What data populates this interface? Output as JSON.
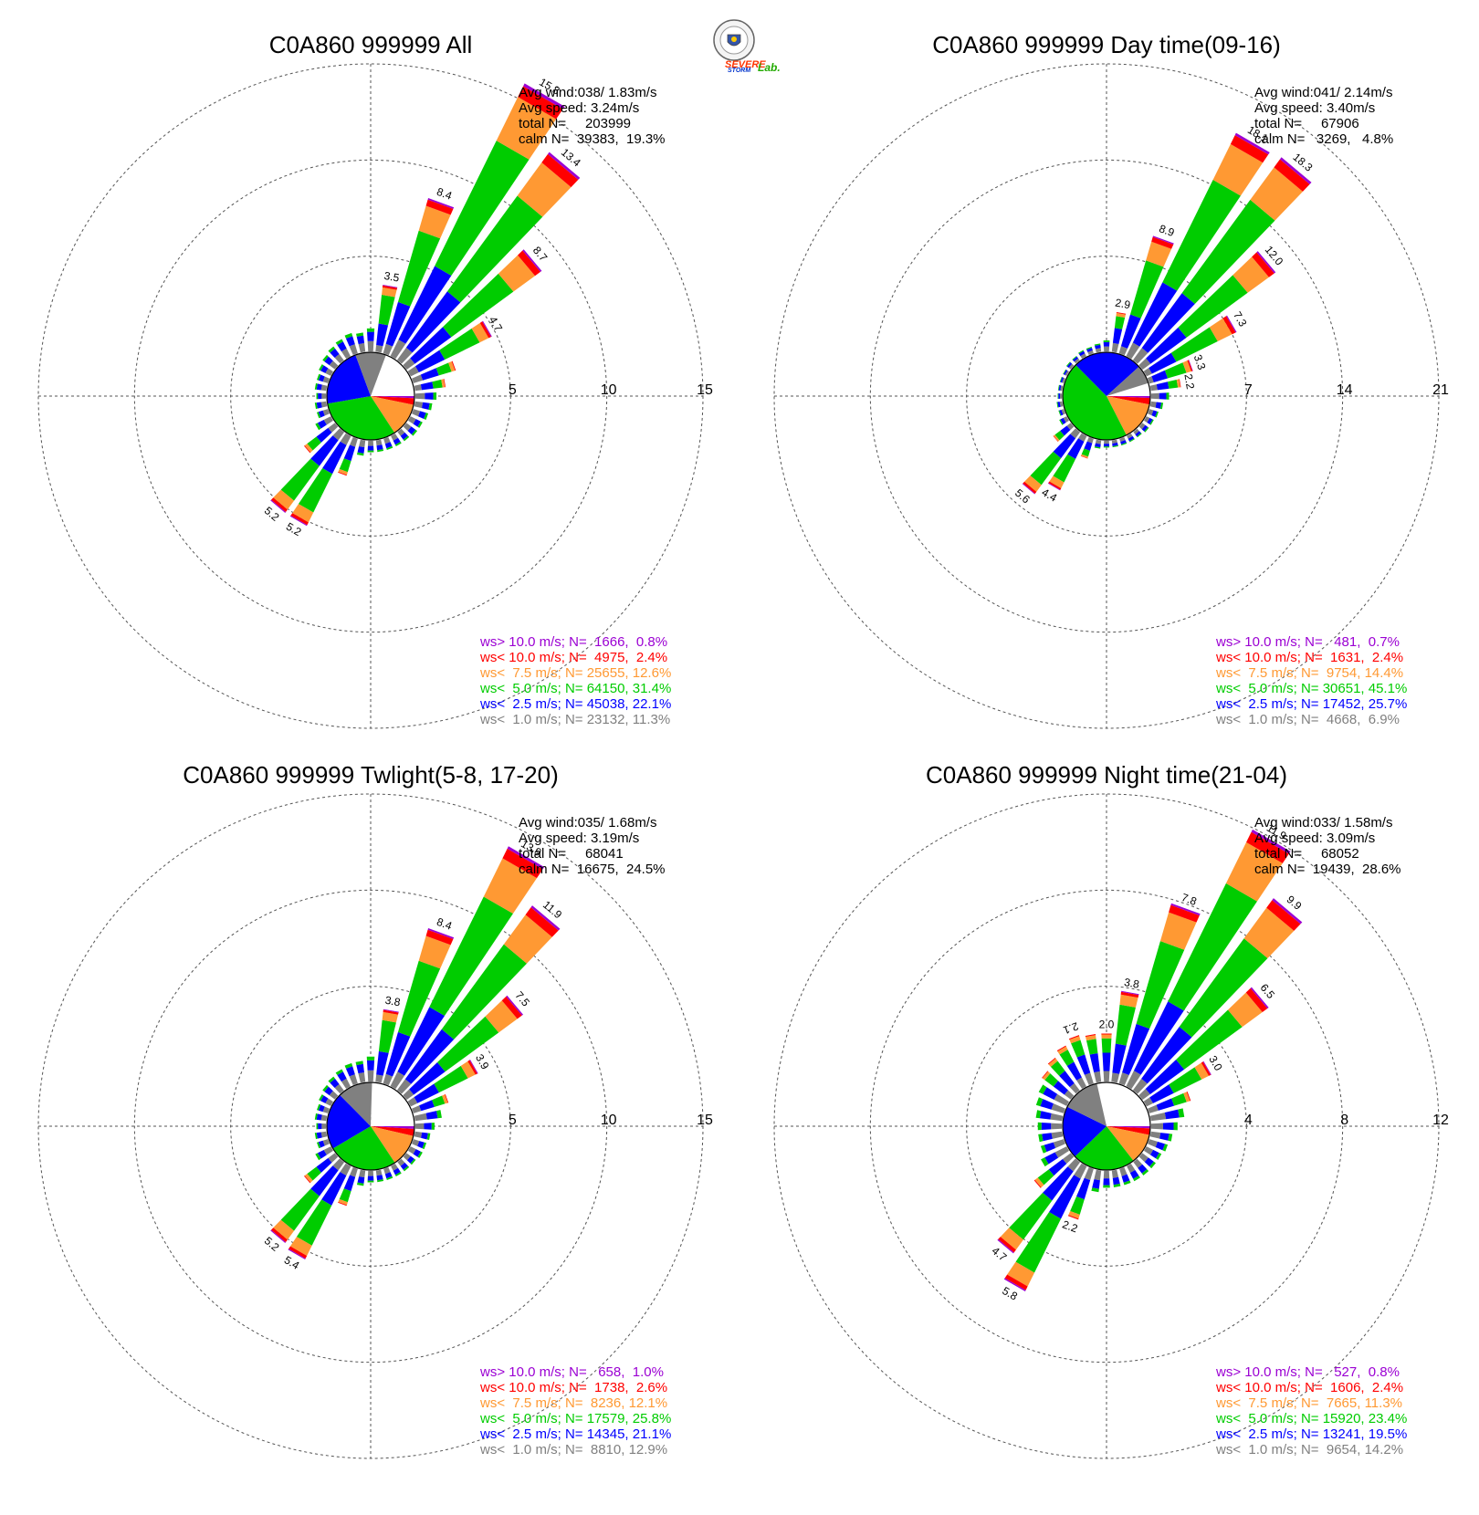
{
  "logo": {
    "text_severe": "SEVERE",
    "text_storm": "STORM",
    "text_lab": "Lab."
  },
  "colors": {
    "bin_gt10": "#9b00d3",
    "bin_lt10": "#ff0000",
    "bin_lt75": "#ff9933",
    "bin_lt5": "#00cc00",
    "bin_lt25": "#0000ff",
    "bin_lt1": "#808080",
    "grid": "#555555"
  },
  "chart_data": [
    {
      "type": "windrose",
      "title": "C0A860 999999 All",
      "rmax": 15,
      "rings": [
        5,
        10,
        15
      ],
      "ring_labels": [
        "5",
        "10",
        "15"
      ],
      "stats": [
        "Avg wind:038/ 1.83m/s",
        "Avg speed: 3.24m/s",
        "total N=     203999",
        "calm N=  39383,  19.3%"
      ],
      "legend": [
        "ws> 10.0 m/s; N=  1666,  0.8%",
        "ws< 10.0 m/s; N=  4975,  2.4%",
        "ws<  7.5 m/s; N= 25655, 12.6%",
        "ws<  5.0 m/s; N= 64150, 31.4%",
        "ws<  2.5 m/s; N= 45038, 22.1%",
        "ws<  1.0 m/s; N= 23132, 11.3%"
      ],
      "pie": [
        19.3,
        0.8,
        2.4,
        12.6,
        31.4,
        22.1,
        11.3
      ],
      "bars": [
        {
          "dir": 0,
          "total": 1.2,
          "label": ""
        },
        {
          "dir": 10,
          "total": 3.5,
          "label": "3.5"
        },
        {
          "dir": 20,
          "total": 8.4,
          "label": "8.4"
        },
        {
          "dir": 30,
          "total": 15.8,
          "label": "15.8"
        },
        {
          "dir": 40,
          "total": 13.4,
          "label": "13.4"
        },
        {
          "dir": 50,
          "total": 8.7,
          "label": "8.7"
        },
        {
          "dir": 60,
          "total": 4.7,
          "label": "4.7"
        },
        {
          "dir": 70,
          "total": 2.3,
          "label": ""
        },
        {
          "dir": 80,
          "total": 1.6,
          "label": ""
        },
        {
          "dir": 90,
          "total": 1.1,
          "label": ""
        },
        {
          "dir": 100,
          "total": 0.9,
          "label": ""
        },
        {
          "dir": 110,
          "total": 0.8,
          "label": ""
        },
        {
          "dir": 120,
          "total": 0.7,
          "label": ""
        },
        {
          "dir": 130,
          "total": 0.7,
          "label": ""
        },
        {
          "dir": 140,
          "total": 0.6,
          "label": ""
        },
        {
          "dir": 150,
          "total": 0.6,
          "label": ""
        },
        {
          "dir": 160,
          "total": 0.6,
          "label": ""
        },
        {
          "dir": 170,
          "total": 0.6,
          "label": ""
        },
        {
          "dir": 180,
          "total": 0.6,
          "label": ""
        },
        {
          "dir": 190,
          "total": 0.8,
          "label": ""
        },
        {
          "dir": 200,
          "total": 2.0,
          "label": ""
        },
        {
          "dir": 210,
          "total": 5.2,
          "label": "5.2"
        },
        {
          "dir": 220,
          "total": 5.2,
          "label": "5.2"
        },
        {
          "dir": 230,
          "total": 2.0,
          "label": ""
        },
        {
          "dir": 240,
          "total": 0.9,
          "label": ""
        },
        {
          "dir": 250,
          "total": 0.6,
          "label": ""
        },
        {
          "dir": 260,
          "total": 0.6,
          "label": ""
        },
        {
          "dir": 270,
          "total": 0.5,
          "label": ""
        },
        {
          "dir": 280,
          "total": 0.6,
          "label": ""
        },
        {
          "dir": 290,
          "total": 0.6,
          "label": ""
        },
        {
          "dir": 300,
          "total": 0.7,
          "label": ""
        },
        {
          "dir": 310,
          "total": 0.8,
          "label": ""
        },
        {
          "dir": 320,
          "total": 0.9,
          "label": ""
        },
        {
          "dir": 330,
          "total": 1.0,
          "label": ""
        },
        {
          "dir": 340,
          "total": 1.1,
          "label": ""
        },
        {
          "dir": 350,
          "total": 1.0,
          "label": ""
        }
      ]
    },
    {
      "type": "windrose",
      "title": "C0A860 999999 Day time(09-16)",
      "rmax": 21,
      "rings": [
        7,
        14,
        21
      ],
      "ring_labels": [
        "7",
        "14",
        "21"
      ],
      "stats": [
        "Avg wind:041/ 2.14m/s",
        "Avg speed: 3.40m/s",
        "total N=     67906",
        "calm N=   3269,   4.8%"
      ],
      "legend": [
        "ws> 10.0 m/s; N=   481,  0.7%",
        "ws< 10.0 m/s; N=  1631,  2.4%",
        "ws<  7.5 m/s; N=  9754, 14.4%",
        "ws<  5.0 m/s; N= 30651, 45.1%",
        "ws<  2.5 m/s; N= 17452, 25.7%",
        "ws<  1.0 m/s; N=  4668,  6.9%"
      ],
      "pie": [
        4.8,
        0.7,
        2.4,
        14.4,
        45.1,
        25.7,
        6.9
      ],
      "bars": [
        {
          "dir": 0,
          "total": 0.8,
          "label": ""
        },
        {
          "dir": 10,
          "total": 2.9,
          "label": "2.9"
        },
        {
          "dir": 20,
          "total": 8.9,
          "label": "8.9"
        },
        {
          "dir": 30,
          "total": 18.1,
          "label": "18.1"
        },
        {
          "dir": 40,
          "total": 18.3,
          "label": "18.3"
        },
        {
          "dir": 50,
          "total": 12.0,
          "label": "12.0"
        },
        {
          "dir": 60,
          "total": 7.3,
          "label": "7.3"
        },
        {
          "dir": 70,
          "total": 3.3,
          "label": "3.3"
        },
        {
          "dir": 80,
          "total": 2.2,
          "label": "2.2"
        },
        {
          "dir": 90,
          "total": 1.3,
          "label": ""
        },
        {
          "dir": 100,
          "total": 0.9,
          "label": ""
        },
        {
          "dir": 110,
          "total": 0.7,
          "label": ""
        },
        {
          "dir": 120,
          "total": 0.6,
          "label": ""
        },
        {
          "dir": 130,
          "total": 0.6,
          "label": ""
        },
        {
          "dir": 140,
          "total": 0.5,
          "label": ""
        },
        {
          "dir": 150,
          "total": 0.5,
          "label": ""
        },
        {
          "dir": 160,
          "total": 0.5,
          "label": ""
        },
        {
          "dir": 170,
          "total": 0.5,
          "label": ""
        },
        {
          "dir": 180,
          "total": 0.5,
          "label": ""
        },
        {
          "dir": 190,
          "total": 0.6,
          "label": ""
        },
        {
          "dir": 200,
          "total": 1.5,
          "label": ""
        },
        {
          "dir": 210,
          "total": 4.4,
          "label": "4.4"
        },
        {
          "dir": 220,
          "total": 5.6,
          "label": "5.6"
        },
        {
          "dir": 230,
          "total": 1.6,
          "label": ""
        },
        {
          "dir": 240,
          "total": 0.6,
          "label": ""
        },
        {
          "dir": 250,
          "total": 0.4,
          "label": ""
        },
        {
          "dir": 260,
          "total": 0.4,
          "label": ""
        },
        {
          "dir": 270,
          "total": 0.3,
          "label": ""
        },
        {
          "dir": 280,
          "total": 0.3,
          "label": ""
        },
        {
          "dir": 290,
          "total": 0.3,
          "label": ""
        },
        {
          "dir": 300,
          "total": 0.3,
          "label": ""
        },
        {
          "dir": 310,
          "total": 0.4,
          "label": ""
        },
        {
          "dir": 320,
          "total": 0.4,
          "label": ""
        },
        {
          "dir": 330,
          "total": 0.5,
          "label": ""
        },
        {
          "dir": 340,
          "total": 0.5,
          "label": ""
        },
        {
          "dir": 350,
          "total": 0.6,
          "label": ""
        }
      ]
    },
    {
      "type": "windrose",
      "title": "C0A860 999999 Twlight(5-8, 17-20)",
      "rmax": 15,
      "rings": [
        5,
        10,
        15
      ],
      "ring_labels": [
        "5",
        "10",
        "15"
      ],
      "stats": [
        "Avg wind:035/ 1.68m/s",
        "Avg speed: 3.19m/s",
        "total N=     68041",
        "calm N=  16675,  24.5%"
      ],
      "legend": [
        "ws> 10.0 m/s; N=   658,  1.0%",
        "ws< 10.0 m/s; N=  1738,  2.6%",
        "ws<  7.5 m/s; N=  8236, 12.1%",
        "ws<  5.0 m/s; N= 17579, 25.8%",
        "ws<  2.5 m/s; N= 14345, 21.1%",
        "ws<  1.0 m/s; N=  8810, 12.9%"
      ],
      "pie": [
        24.5,
        1.0,
        2.6,
        12.1,
        25.8,
        21.1,
        12.9
      ],
      "bars": [
        {
          "dir": 0,
          "total": 1.3,
          "label": ""
        },
        {
          "dir": 10,
          "total": 3.8,
          "label": "3.8"
        },
        {
          "dir": 20,
          "total": 8.4,
          "label": "8.4"
        },
        {
          "dir": 30,
          "total": 13.9,
          "label": "13.9"
        },
        {
          "dir": 40,
          "total": 11.9,
          "label": "11.9"
        },
        {
          "dir": 50,
          "total": 7.5,
          "label": "7.5"
        },
        {
          "dir": 60,
          "total": 3.9,
          "label": "3.9"
        },
        {
          "dir": 70,
          "total": 1.9,
          "label": ""
        },
        {
          "dir": 80,
          "total": 1.4,
          "label": ""
        },
        {
          "dir": 90,
          "total": 1.0,
          "label": ""
        },
        {
          "dir": 100,
          "total": 0.8,
          "label": ""
        },
        {
          "dir": 110,
          "total": 0.7,
          "label": ""
        },
        {
          "dir": 120,
          "total": 0.7,
          "label": ""
        },
        {
          "dir": 130,
          "total": 0.6,
          "label": ""
        },
        {
          "dir": 140,
          "total": 0.6,
          "label": ""
        },
        {
          "dir": 150,
          "total": 0.6,
          "label": ""
        },
        {
          "dir": 160,
          "total": 0.6,
          "label": ""
        },
        {
          "dir": 170,
          "total": 0.6,
          "label": ""
        },
        {
          "dir": 180,
          "total": 0.6,
          "label": ""
        },
        {
          "dir": 190,
          "total": 0.8,
          "label": ""
        },
        {
          "dir": 200,
          "total": 2.0,
          "label": ""
        },
        {
          "dir": 210,
          "total": 5.4,
          "label": "5.4"
        },
        {
          "dir": 220,
          "total": 5.2,
          "label": "5.2"
        },
        {
          "dir": 230,
          "total": 2.0,
          "label": ""
        },
        {
          "dir": 240,
          "total": 0.9,
          "label": ""
        },
        {
          "dir": 250,
          "total": 0.6,
          "label": ""
        },
        {
          "dir": 260,
          "total": 0.6,
          "label": ""
        },
        {
          "dir": 270,
          "total": 0.5,
          "label": ""
        },
        {
          "dir": 280,
          "total": 0.6,
          "label": ""
        },
        {
          "dir": 290,
          "total": 0.6,
          "label": ""
        },
        {
          "dir": 300,
          "total": 0.7,
          "label": ""
        },
        {
          "dir": 310,
          "total": 0.8,
          "label": ""
        },
        {
          "dir": 320,
          "total": 0.9,
          "label": ""
        },
        {
          "dir": 330,
          "total": 1.0,
          "label": ""
        },
        {
          "dir": 340,
          "total": 1.1,
          "label": ""
        },
        {
          "dir": 350,
          "total": 1.1,
          "label": ""
        }
      ]
    },
    {
      "type": "windrose",
      "title": "C0A860 999999 Night time(21-04)",
      "rmax": 12,
      "rings": [
        4,
        8,
        12
      ],
      "ring_labels": [
        "4",
        "8",
        "12"
      ],
      "stats": [
        "Avg wind:033/ 1.58m/s",
        "Avg speed: 3.09m/s",
        "total N=     68052",
        "calm N=  19439,  28.6%"
      ],
      "legend": [
        "ws> 10.0 m/s; N=   527,  0.8%",
        "ws< 10.0 m/s; N=  1606,  2.4%",
        "ws<  7.5 m/s; N=  7665, 11.3%",
        "ws<  5.0 m/s; N= 15920, 23.4%",
        "ws<  2.5 m/s; N= 13241, 19.5%",
        "ws<  1.0 m/s; N=  9654, 14.2%"
      ],
      "pie": [
        28.6,
        0.8,
        2.4,
        11.3,
        23.4,
        19.5,
        14.2
      ],
      "bars": [
        {
          "dir": 0,
          "total": 2.0,
          "label": "2.0"
        },
        {
          "dir": 10,
          "total": 3.8,
          "label": "3.8"
        },
        {
          "dir": 20,
          "total": 7.8,
          "label": "7.8"
        },
        {
          "dir": 30,
          "total": 11.9,
          "label": "11.9"
        },
        {
          "dir": 40,
          "total": 9.9,
          "label": "9.9"
        },
        {
          "dir": 50,
          "total": 6.5,
          "label": "6.5"
        },
        {
          "dir": 60,
          "total": 3.0,
          "label": "3.0"
        },
        {
          "dir": 70,
          "total": 1.8,
          "label": ""
        },
        {
          "dir": 80,
          "total": 1.4,
          "label": ""
        },
        {
          "dir": 90,
          "total": 1.1,
          "label": ""
        },
        {
          "dir": 100,
          "total": 0.9,
          "label": ""
        },
        {
          "dir": 110,
          "total": 0.8,
          "label": ""
        },
        {
          "dir": 120,
          "total": 0.7,
          "label": ""
        },
        {
          "dir": 130,
          "total": 0.7,
          "label": ""
        },
        {
          "dir": 140,
          "total": 0.7,
          "label": ""
        },
        {
          "dir": 150,
          "total": 0.7,
          "label": ""
        },
        {
          "dir": 160,
          "total": 0.7,
          "label": ""
        },
        {
          "dir": 170,
          "total": 0.7,
          "label": ""
        },
        {
          "dir": 180,
          "total": 0.7,
          "label": ""
        },
        {
          "dir": 190,
          "total": 0.9,
          "label": ""
        },
        {
          "dir": 200,
          "total": 2.2,
          "label": "2.2"
        },
        {
          "dir": 210,
          "total": 5.8,
          "label": "5.8"
        },
        {
          "dir": 220,
          "total": 4.7,
          "label": "4.7"
        },
        {
          "dir": 230,
          "total": 1.9,
          "label": ""
        },
        {
          "dir": 240,
          "total": 1.2,
          "label": ""
        },
        {
          "dir": 250,
          "total": 1.0,
          "label": ""
        },
        {
          "dir": 260,
          "total": 1.0,
          "label": ""
        },
        {
          "dir": 270,
          "total": 1.0,
          "label": ""
        },
        {
          "dir": 280,
          "total": 1.1,
          "label": ""
        },
        {
          "dir": 290,
          "total": 1.2,
          "label": ""
        },
        {
          "dir": 300,
          "total": 1.3,
          "label": ""
        },
        {
          "dir": 310,
          "total": 1.5,
          "label": ""
        },
        {
          "dir": 320,
          "total": 1.7,
          "label": ""
        },
        {
          "dir": 330,
          "total": 1.9,
          "label": ""
        },
        {
          "dir": 340,
          "total": 2.1,
          "label": "2.1"
        },
        {
          "dir": 350,
          "total": 2.0,
          "label": ""
        }
      ]
    }
  ]
}
